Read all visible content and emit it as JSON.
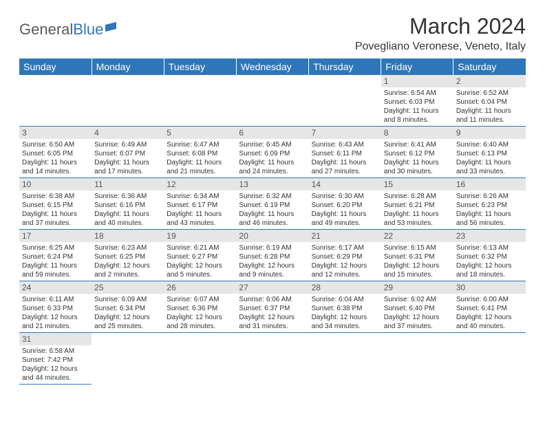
{
  "logo": {
    "text1": "General",
    "text2": "Blue"
  },
  "title": "March 2024",
  "location": "Povegliano Veronese, Veneto, Italy",
  "colors": {
    "headerBg": "#2f76b8",
    "headerFg": "#ffffff",
    "dayNumBg": "#e6e6e6",
    "rowBorder": "#2f76b8",
    "pageBg": "#ffffff",
    "text": "#333333"
  },
  "weekdays": [
    "Sunday",
    "Monday",
    "Tuesday",
    "Wednesday",
    "Thursday",
    "Friday",
    "Saturday"
  ],
  "startDayIndex": 5,
  "daysInMonth": 31,
  "days": {
    "1": {
      "sunrise": "6:54 AM",
      "sunset": "6:03 PM",
      "daylight": "11 hours and 8 minutes."
    },
    "2": {
      "sunrise": "6:52 AM",
      "sunset": "6:04 PM",
      "daylight": "11 hours and 11 minutes."
    },
    "3": {
      "sunrise": "6:50 AM",
      "sunset": "6:05 PM",
      "daylight": "11 hours and 14 minutes."
    },
    "4": {
      "sunrise": "6:49 AM",
      "sunset": "6:07 PM",
      "daylight": "11 hours and 17 minutes."
    },
    "5": {
      "sunrise": "6:47 AM",
      "sunset": "6:08 PM",
      "daylight": "11 hours and 21 minutes."
    },
    "6": {
      "sunrise": "6:45 AM",
      "sunset": "6:09 PM",
      "daylight": "11 hours and 24 minutes."
    },
    "7": {
      "sunrise": "6:43 AM",
      "sunset": "6:11 PM",
      "daylight": "11 hours and 27 minutes."
    },
    "8": {
      "sunrise": "6:41 AM",
      "sunset": "6:12 PM",
      "daylight": "11 hours and 30 minutes."
    },
    "9": {
      "sunrise": "6:40 AM",
      "sunset": "6:13 PM",
      "daylight": "11 hours and 33 minutes."
    },
    "10": {
      "sunrise": "6:38 AM",
      "sunset": "6:15 PM",
      "daylight": "11 hours and 37 minutes."
    },
    "11": {
      "sunrise": "6:36 AM",
      "sunset": "6:16 PM",
      "daylight": "11 hours and 40 minutes."
    },
    "12": {
      "sunrise": "6:34 AM",
      "sunset": "6:17 PM",
      "daylight": "11 hours and 43 minutes."
    },
    "13": {
      "sunrise": "6:32 AM",
      "sunset": "6:19 PM",
      "daylight": "11 hours and 46 minutes."
    },
    "14": {
      "sunrise": "6:30 AM",
      "sunset": "6:20 PM",
      "daylight": "11 hours and 49 minutes."
    },
    "15": {
      "sunrise": "6:28 AM",
      "sunset": "6:21 PM",
      "daylight": "11 hours and 53 minutes."
    },
    "16": {
      "sunrise": "6:26 AM",
      "sunset": "6:23 PM",
      "daylight": "11 hours and 56 minutes."
    },
    "17": {
      "sunrise": "6:25 AM",
      "sunset": "6:24 PM",
      "daylight": "11 hours and 59 minutes."
    },
    "18": {
      "sunrise": "6:23 AM",
      "sunset": "6:25 PM",
      "daylight": "12 hours and 2 minutes."
    },
    "19": {
      "sunrise": "6:21 AM",
      "sunset": "6:27 PM",
      "daylight": "12 hours and 5 minutes."
    },
    "20": {
      "sunrise": "6:19 AM",
      "sunset": "6:28 PM",
      "daylight": "12 hours and 9 minutes."
    },
    "21": {
      "sunrise": "6:17 AM",
      "sunset": "6:29 PM",
      "daylight": "12 hours and 12 minutes."
    },
    "22": {
      "sunrise": "6:15 AM",
      "sunset": "6:31 PM",
      "daylight": "12 hours and 15 minutes."
    },
    "23": {
      "sunrise": "6:13 AM",
      "sunset": "6:32 PM",
      "daylight": "12 hours and 18 minutes."
    },
    "24": {
      "sunrise": "6:11 AM",
      "sunset": "6:33 PM",
      "daylight": "12 hours and 21 minutes."
    },
    "25": {
      "sunrise": "6:09 AM",
      "sunset": "6:34 PM",
      "daylight": "12 hours and 25 minutes."
    },
    "26": {
      "sunrise": "6:07 AM",
      "sunset": "6:36 PM",
      "daylight": "12 hours and 28 minutes."
    },
    "27": {
      "sunrise": "6:06 AM",
      "sunset": "6:37 PM",
      "daylight": "12 hours and 31 minutes."
    },
    "28": {
      "sunrise": "6:04 AM",
      "sunset": "6:38 PM",
      "daylight": "12 hours and 34 minutes."
    },
    "29": {
      "sunrise": "6:02 AM",
      "sunset": "6:40 PM",
      "daylight": "12 hours and 37 minutes."
    },
    "30": {
      "sunrise": "6:00 AM",
      "sunset": "6:41 PM",
      "daylight": "12 hours and 40 minutes."
    },
    "31": {
      "sunrise": "6:58 AM",
      "sunset": "7:42 PM",
      "daylight": "12 hours and 44 minutes."
    }
  },
  "labels": {
    "sunrise": "Sunrise:",
    "sunset": "Sunset:",
    "daylight": "Daylight:"
  }
}
